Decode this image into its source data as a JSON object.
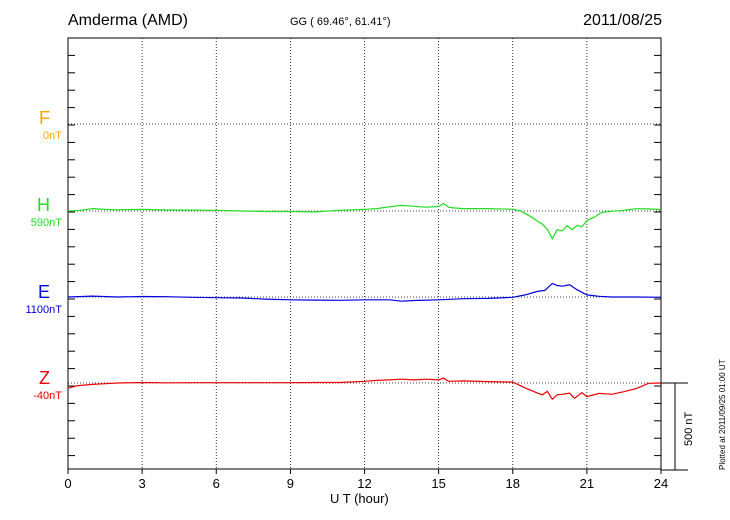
{
  "header": {
    "station": "Amderma (AMD)",
    "coords": "GG ( 69.46°,  61.41°)",
    "date": "2011/08/25"
  },
  "components": [
    {
      "letter": "F",
      "base": "0nT",
      "color": "#ffa500"
    },
    {
      "letter": "H",
      "base": "590nT",
      "color": "#22dd22"
    },
    {
      "letter": "E",
      "base": "1100nT",
      "color": "#0000dd"
    },
    {
      "letter": "Z",
      "base": "-40nT",
      "color": "#ee0000"
    }
  ],
  "scale_label": "500 nT",
  "plotted_note": "Plotted at 2011/09/25 01:00 UT",
  "chart_data": {
    "type": "line",
    "xlabel": "U T (hour)",
    "xlim": [
      0,
      24
    ],
    "xticks": [
      0,
      3,
      6,
      9,
      12,
      15,
      18,
      21,
      24
    ],
    "scale_nT": 500,
    "series": [
      {
        "name": "H",
        "color": "#22dd22",
        "x": [
          0,
          0.5,
          1,
          1.5,
          2,
          3,
          4,
          5,
          6,
          7,
          8,
          9,
          10,
          11,
          12,
          12.5,
          13,
          13.5,
          14,
          14.5,
          15,
          15.2,
          15.4,
          15.6,
          16,
          17,
          18,
          18.3,
          18.7,
          19,
          19.2,
          19.4,
          19.6,
          19.8,
          20,
          20.2,
          20.4,
          20.6,
          20.8,
          21,
          21.3,
          21.6,
          22,
          22.5,
          23,
          23.5,
          24
        ],
        "y": [
          590,
          594,
          604,
          599,
          597,
          599,
          596,
          595,
          594,
          590,
          587,
          587,
          585,
          594,
          600,
          604,
          614,
          622,
          617,
          612,
          616,
          633,
          612,
          608,
          604,
          604,
          600,
          592,
          560,
          532,
          515,
          485,
          430,
          483,
          475,
          506,
          483,
          507,
          500,
          535,
          555,
          582,
          588,
          594,
          603,
          602,
          598
        ]
      },
      {
        "name": "E",
        "color": "#0000dd",
        "x": [
          0,
          1,
          2,
          3,
          4,
          5,
          6,
          7,
          8,
          9,
          10,
          11,
          12,
          13,
          13.5,
          14,
          15,
          16,
          17,
          18,
          18.5,
          19,
          19.3,
          19.6,
          19.8,
          20,
          20.3,
          20.6,
          21,
          21.5,
          22,
          23,
          24
        ],
        "y": [
          1100,
          1105,
          1100,
          1103,
          1102,
          1098,
          1096,
          1094,
          1088,
          1084,
          1082,
          1081,
          1084,
          1084,
          1076,
          1080,
          1084,
          1090,
          1092,
          1098,
          1112,
          1132,
          1138,
          1178,
          1166,
          1162,
          1170,
          1142,
          1112,
          1104,
          1100,
          1100,
          1098
        ]
      },
      {
        "name": "Z",
        "color": "#ee0000",
        "x": [
          0,
          0.4,
          1,
          1.5,
          2,
          3,
          4,
          5,
          6,
          7,
          8,
          9,
          10,
          11,
          12,
          12.5,
          13,
          13.5,
          14,
          14.5,
          15,
          15.2,
          15.4,
          16,
          17,
          18,
          18.5,
          19,
          19.2,
          19.4,
          19.6,
          19.8,
          20,
          20.3,
          20.5,
          20.8,
          21,
          21.5,
          22,
          22.5,
          23,
          23.5,
          24
        ],
        "y": [
          -70,
          -55,
          -48,
          -44,
          -40,
          -37,
          -39,
          -38,
          -38,
          -38,
          -38,
          -38,
          -37,
          -37,
          -30,
          -25,
          -22,
          -18,
          -22,
          -18,
          -22,
          -12,
          -30,
          -28,
          -32,
          -35,
          -68,
          -98,
          -108,
          -88,
          -133,
          -108,
          -105,
          -98,
          -128,
          -95,
          -118,
          -100,
          -105,
          -90,
          -72,
          -42,
          -40
        ]
      }
    ]
  }
}
